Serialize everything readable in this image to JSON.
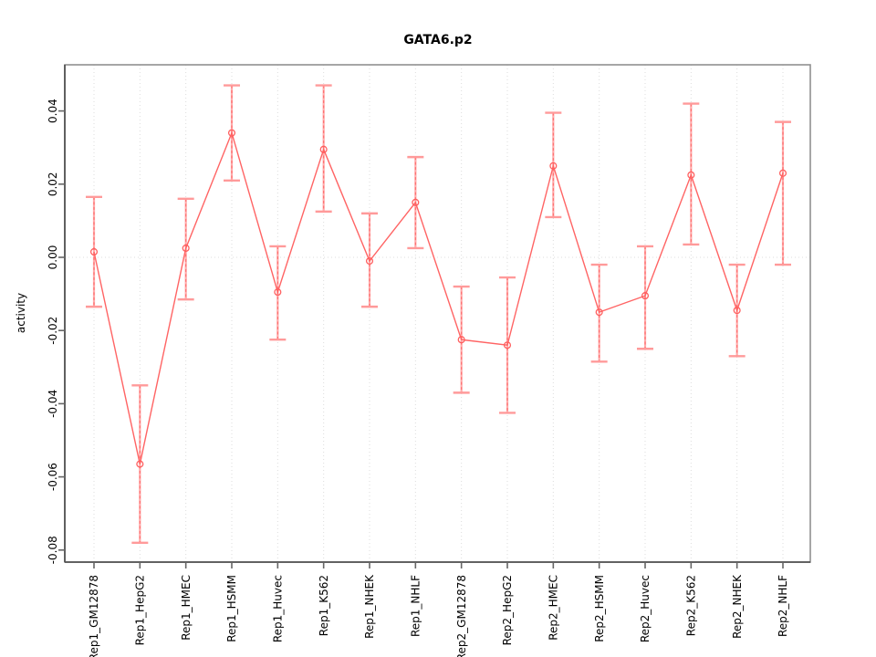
{
  "chart_data": {
    "type": "line",
    "title": "GATA6.p2",
    "xlabel": "",
    "ylabel": "activity",
    "legend": "none",
    "grid": "dotted vertical gridline at each category; dotted horizontal line at y=0",
    "categories": [
      "Rep1_GM12878",
      "Rep1_HepG2",
      "Rep1_HMEC",
      "Rep1_HSMM",
      "Rep1_Huvec",
      "Rep1_K562",
      "Rep1_NHEK",
      "Rep1_NHLF",
      "Rep2_GM12878",
      "Rep2_HepG2",
      "Rep2_HMEC",
      "Rep2_HSMM",
      "Rep2_Huvec",
      "Rep2_K562",
      "Rep2_NHEK",
      "Rep2_NHLF"
    ],
    "series": [
      {
        "name": "activity",
        "marker": "open-circle",
        "values": [
          0.0015,
          -0.0565,
          0.0025,
          0.034,
          -0.0095,
          0.0295,
          -0.001,
          0.015,
          -0.0225,
          -0.024,
          0.025,
          -0.015,
          -0.0105,
          0.0225,
          -0.0145,
          0.023
        ],
        "ci_low": [
          -0.0135,
          -0.078,
          -0.0115,
          0.021,
          -0.0225,
          0.0125,
          -0.0135,
          0.0025,
          -0.037,
          -0.0425,
          0.011,
          -0.0285,
          -0.025,
          0.0035,
          -0.027,
          -0.002
        ],
        "ci_high": [
          0.0165,
          -0.035,
          0.016,
          0.047,
          0.003,
          0.047,
          0.012,
          0.0274,
          -0.008,
          -0.0055,
          0.0395,
          -0.002,
          0.003,
          0.042,
          -0.002,
          0.037
        ]
      }
    ],
    "ylim": [
      -0.0831,
      0.0526
    ],
    "yticks": [
      0.04,
      0.02,
      0.0,
      -0.02,
      -0.04,
      -0.06,
      -0.08
    ],
    "ytick_labels": [
      "0.04",
      "0.02",
      "0.00",
      "-0.02",
      "-0.04",
      "-0.06",
      "-0.08"
    ],
    "colors": {
      "line": "#ff6464",
      "point": "#ff5f5f",
      "errorbar_core": "#ffabab",
      "errorbar_dash": "#ff6b6b",
      "cap": "#ff9a9a",
      "grid": "#dcdcdc",
      "box": "#909090",
      "axis": "#555555",
      "tick": "#666666",
      "text": "#000000",
      "background": "#ffffff"
    }
  }
}
